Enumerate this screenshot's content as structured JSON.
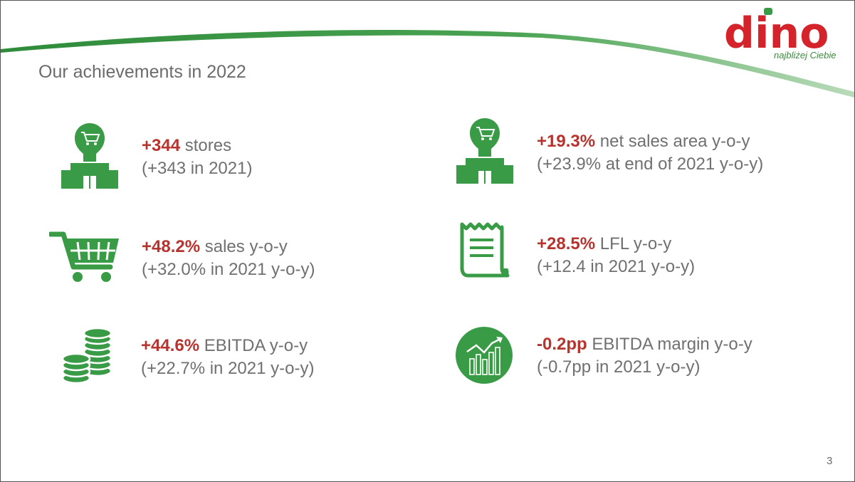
{
  "slide": {
    "title": "Our achievements in 2022",
    "page_number": "3"
  },
  "brand": {
    "logo_text": "dino",
    "slogan": "najbliżej Ciebie",
    "red": "#d5232b",
    "green": "#3a9b47",
    "highlight": "#b7332e",
    "text_gray": "#707070"
  },
  "achievements": [
    {
      "icon": "store-icon",
      "highlight": "+344",
      "label": " stores",
      "sub": "(+343 in 2021)"
    },
    {
      "icon": "store-icon",
      "highlight": "+19.3%",
      "label": " net sales area y-o-y",
      "sub": "(+23.9% at end of 2021 y-o-y)"
    },
    {
      "icon": "shopping-cart-icon",
      "highlight": "+48.2%",
      "label": " sales y-o-y",
      "sub": "(+32.0% in 2021 y-o-y)"
    },
    {
      "icon": "receipt-icon",
      "highlight": "+28.5%",
      "label": " LFL y-o-y",
      "sub": "(+12.4 in 2021 y-o-y)"
    },
    {
      "icon": "coins-icon",
      "highlight": "+44.6%",
      "label": " EBITDA y-o-y",
      "sub": "(+22.7% in 2021 y-o-y)"
    },
    {
      "icon": "growth-chart-icon",
      "highlight": "-0.2pp",
      "label": " EBITDA margin y-o-y",
      "sub": "(-0.7pp in 2021 y-o-y)"
    }
  ]
}
